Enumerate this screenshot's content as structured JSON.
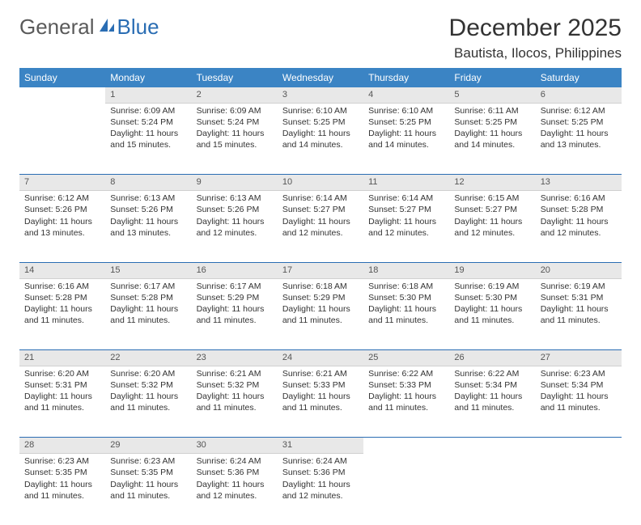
{
  "logo": {
    "text1": "General",
    "text2": "Blue"
  },
  "title": "December 2025",
  "location": "Bautista, Ilocos, Philippines",
  "colors": {
    "header_bg": "#3b84c4",
    "header_text": "#ffffff",
    "daynum_bg": "#e8e8e8",
    "separator": "#2a6db3",
    "logo_gray": "#5a5a5a",
    "logo_blue": "#2a6db3"
  },
  "weekdays": [
    "Sunday",
    "Monday",
    "Tuesday",
    "Wednesday",
    "Thursday",
    "Friday",
    "Saturday"
  ],
  "start_offset": 1,
  "days": [
    {
      "n": 1,
      "sunrise": "6:09 AM",
      "sunset": "5:24 PM",
      "daylight": "11 hours and 15 minutes."
    },
    {
      "n": 2,
      "sunrise": "6:09 AM",
      "sunset": "5:24 PM",
      "daylight": "11 hours and 15 minutes."
    },
    {
      "n": 3,
      "sunrise": "6:10 AM",
      "sunset": "5:25 PM",
      "daylight": "11 hours and 14 minutes."
    },
    {
      "n": 4,
      "sunrise": "6:10 AM",
      "sunset": "5:25 PM",
      "daylight": "11 hours and 14 minutes."
    },
    {
      "n": 5,
      "sunrise": "6:11 AM",
      "sunset": "5:25 PM",
      "daylight": "11 hours and 14 minutes."
    },
    {
      "n": 6,
      "sunrise": "6:12 AM",
      "sunset": "5:25 PM",
      "daylight": "11 hours and 13 minutes."
    },
    {
      "n": 7,
      "sunrise": "6:12 AM",
      "sunset": "5:26 PM",
      "daylight": "11 hours and 13 minutes."
    },
    {
      "n": 8,
      "sunrise": "6:13 AM",
      "sunset": "5:26 PM",
      "daylight": "11 hours and 13 minutes."
    },
    {
      "n": 9,
      "sunrise": "6:13 AM",
      "sunset": "5:26 PM",
      "daylight": "11 hours and 12 minutes."
    },
    {
      "n": 10,
      "sunrise": "6:14 AM",
      "sunset": "5:27 PM",
      "daylight": "11 hours and 12 minutes."
    },
    {
      "n": 11,
      "sunrise": "6:14 AM",
      "sunset": "5:27 PM",
      "daylight": "11 hours and 12 minutes."
    },
    {
      "n": 12,
      "sunrise": "6:15 AM",
      "sunset": "5:27 PM",
      "daylight": "11 hours and 12 minutes."
    },
    {
      "n": 13,
      "sunrise": "6:16 AM",
      "sunset": "5:28 PM",
      "daylight": "11 hours and 12 minutes."
    },
    {
      "n": 14,
      "sunrise": "6:16 AM",
      "sunset": "5:28 PM",
      "daylight": "11 hours and 11 minutes."
    },
    {
      "n": 15,
      "sunrise": "6:17 AM",
      "sunset": "5:28 PM",
      "daylight": "11 hours and 11 minutes."
    },
    {
      "n": 16,
      "sunrise": "6:17 AM",
      "sunset": "5:29 PM",
      "daylight": "11 hours and 11 minutes."
    },
    {
      "n": 17,
      "sunrise": "6:18 AM",
      "sunset": "5:29 PM",
      "daylight": "11 hours and 11 minutes."
    },
    {
      "n": 18,
      "sunrise": "6:18 AM",
      "sunset": "5:30 PM",
      "daylight": "11 hours and 11 minutes."
    },
    {
      "n": 19,
      "sunrise": "6:19 AM",
      "sunset": "5:30 PM",
      "daylight": "11 hours and 11 minutes."
    },
    {
      "n": 20,
      "sunrise": "6:19 AM",
      "sunset": "5:31 PM",
      "daylight": "11 hours and 11 minutes."
    },
    {
      "n": 21,
      "sunrise": "6:20 AM",
      "sunset": "5:31 PM",
      "daylight": "11 hours and 11 minutes."
    },
    {
      "n": 22,
      "sunrise": "6:20 AM",
      "sunset": "5:32 PM",
      "daylight": "11 hours and 11 minutes."
    },
    {
      "n": 23,
      "sunrise": "6:21 AM",
      "sunset": "5:32 PM",
      "daylight": "11 hours and 11 minutes."
    },
    {
      "n": 24,
      "sunrise": "6:21 AM",
      "sunset": "5:33 PM",
      "daylight": "11 hours and 11 minutes."
    },
    {
      "n": 25,
      "sunrise": "6:22 AM",
      "sunset": "5:33 PM",
      "daylight": "11 hours and 11 minutes."
    },
    {
      "n": 26,
      "sunrise": "6:22 AM",
      "sunset": "5:34 PM",
      "daylight": "11 hours and 11 minutes."
    },
    {
      "n": 27,
      "sunrise": "6:23 AM",
      "sunset": "5:34 PM",
      "daylight": "11 hours and 11 minutes."
    },
    {
      "n": 28,
      "sunrise": "6:23 AM",
      "sunset": "5:35 PM",
      "daylight": "11 hours and 11 minutes."
    },
    {
      "n": 29,
      "sunrise": "6:23 AM",
      "sunset": "5:35 PM",
      "daylight": "11 hours and 11 minutes."
    },
    {
      "n": 30,
      "sunrise": "6:24 AM",
      "sunset": "5:36 PM",
      "daylight": "11 hours and 12 minutes."
    },
    {
      "n": 31,
      "sunrise": "6:24 AM",
      "sunset": "5:36 PM",
      "daylight": "11 hours and 12 minutes."
    }
  ],
  "labels": {
    "sunrise": "Sunrise:",
    "sunset": "Sunset:",
    "daylight": "Daylight:"
  }
}
